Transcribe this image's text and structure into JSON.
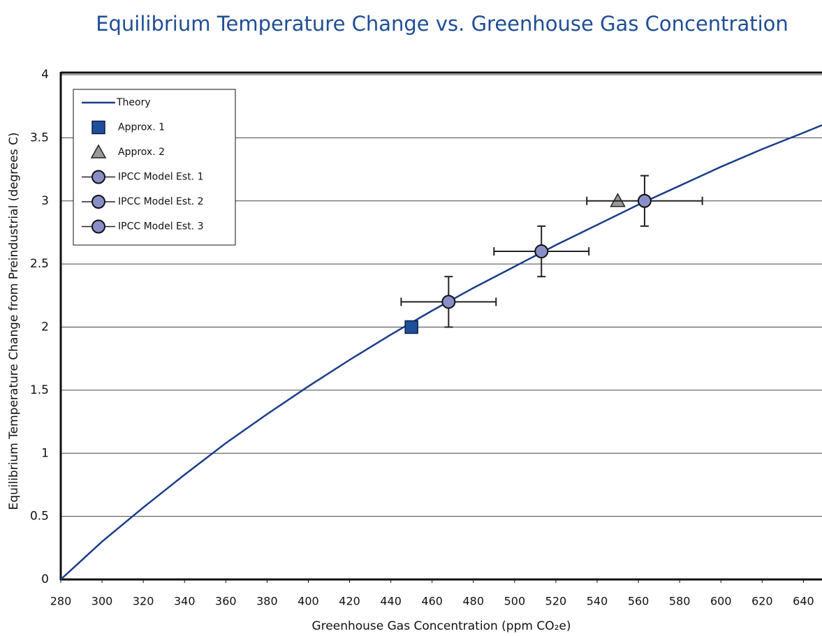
{
  "chart_data": {
    "type": "scatter",
    "title": "Equilibrium Temperature Change vs. Greenhouse Gas Concentration",
    "x_label": "Greenhouse Gas Concentration (ppm CO₂e)",
    "y_label": "Equilibrium Temperature Change from Preindustrial (degrees C)",
    "xlim": [
      280,
      649
    ],
    "ylim": [
      0,
      4
    ],
    "xticks": [
      280,
      300,
      320,
      340,
      360,
      380,
      400,
      420,
      440,
      460,
      480,
      500,
      520,
      540,
      560,
      580,
      600,
      620,
      640
    ],
    "yticks": [
      0,
      0.5,
      1,
      1.5,
      2,
      2.5,
      3,
      3.5,
      4
    ],
    "grid": true,
    "legend": "top-left",
    "series": [
      {
        "name": "Theory",
        "color": "#1a3d8a",
        "marker": "line",
        "x": [
          280,
          300,
          320,
          340,
          360,
          380,
          400,
          420,
          440,
          460,
          480,
          500,
          520,
          540,
          560,
          580,
          600,
          620,
          640,
          649
        ],
        "values": [
          0,
          0.3,
          0.57,
          0.83,
          1.08,
          1.31,
          1.53,
          1.74,
          1.94,
          2.13,
          2.31,
          2.48,
          2.65,
          2.81,
          2.97,
          3.12,
          3.27,
          3.41,
          3.54,
          3.6
        ]
      },
      {
        "name": "Approx. 1",
        "color": "#1f4e9a",
        "marker": "square",
        "x": [
          450
        ],
        "values": [
          2
        ]
      },
      {
        "name": "Approx. 2",
        "color": "#9a9a9a",
        "marker": "triangle",
        "x": [
          550
        ],
        "values": [
          3
        ]
      },
      {
        "name": "IPCC Model Est. 1",
        "color": "#8a8ec8",
        "marker": "circle",
        "x": [
          468
        ],
        "values": [
          2.2
        ],
        "xerr": [
          23
        ],
        "yerr": [
          0.2
        ]
      },
      {
        "name": "IPCC Model Est. 2",
        "color": "#8a8ec8",
        "marker": "circle",
        "x": [
          513
        ],
        "values": [
          2.6
        ],
        "xerr": [
          23
        ],
        "yerr": [
          0.2
        ]
      },
      {
        "name": "IPCC Model Est. 3",
        "color": "#8a8ec8",
        "marker": "circle",
        "x": [
          563
        ],
        "values": [
          3.0
        ],
        "xerr": [
          28
        ],
        "yerr": [
          0.2
        ]
      }
    ]
  }
}
